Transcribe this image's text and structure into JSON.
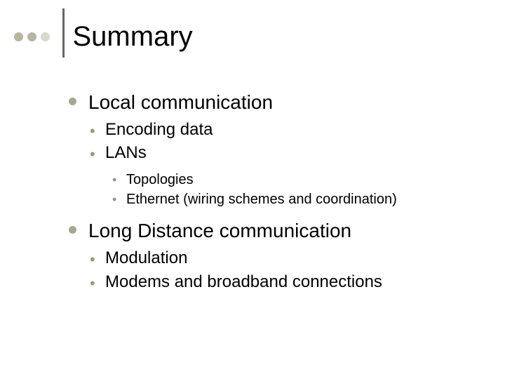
{
  "slide": {
    "title": "Summary",
    "title_fontsize": 40,
    "background_color": "#ffffff",
    "text_color": "#000000",
    "decor": {
      "dot_colors": [
        "#b7b79f",
        "#b7b79f",
        "#d9d9cc"
      ],
      "dot_diameter": 13,
      "dot_gap": 6,
      "vline_color": "#666666",
      "vline_width": 2.5,
      "vline_height": 70
    },
    "bullets": {
      "level1_bullet_color": "#a8a890",
      "level1_bullet_diameter": 11,
      "level1_fontsize": 28,
      "level2_bullet_glyph": "•",
      "level2_bullet_color": "#999980",
      "level2_fontsize": 24,
      "level3_bullet_glyph": "•",
      "level3_bullet_color": "#999980",
      "level3_fontsize": 20
    },
    "items": [
      {
        "text": "Local communication",
        "children": [
          {
            "text": "Encoding data"
          },
          {
            "text": "LANs",
            "children": [
              {
                "text": "Topologies"
              },
              {
                "text": "Ethernet (wiring schemes and coordination)"
              }
            ]
          }
        ]
      },
      {
        "text": "Long Distance communication",
        "children": [
          {
            "text": "Modulation"
          },
          {
            "text": "Modems and broadband connections"
          }
        ]
      }
    ]
  }
}
